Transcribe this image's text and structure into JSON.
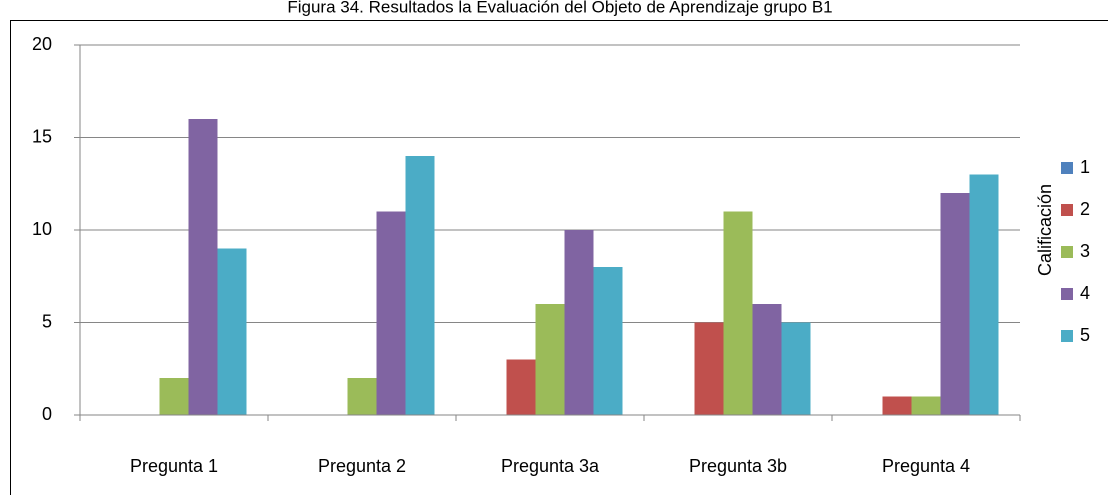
{
  "chart_data": {
    "type": "bar",
    "title": "Figura 34. Resultados la Evaluación del Objeto de Aprendizaje grupo B1",
    "categories": [
      "Pregunta 1",
      "Pregunta 2",
      "Pregunta 3a",
      "Pregunta 3b",
      "Pregunta 4"
    ],
    "legend_title": "Calificación",
    "series": [
      {
        "name": "1",
        "color": "#4f81bd",
        "values": [
          0,
          0,
          0,
          0,
          0
        ]
      },
      {
        "name": "2",
        "color": "#c0504d",
        "values": [
          0,
          0,
          3,
          5,
          1
        ]
      },
      {
        "name": "3",
        "color": "#9bbb59",
        "values": [
          2,
          2,
          6,
          11,
          1
        ]
      },
      {
        "name": "4",
        "color": "#8064a2",
        "values": [
          16,
          11,
          10,
          6,
          12
        ]
      },
      {
        "name": "5",
        "color": "#4bacc6",
        "values": [
          9,
          14,
          8,
          5,
          13
        ]
      }
    ],
    "ylim": [
      0,
      20
    ],
    "yticks": [
      0,
      5,
      10,
      15,
      20
    ],
    "grid": true,
    "legend": "right"
  }
}
